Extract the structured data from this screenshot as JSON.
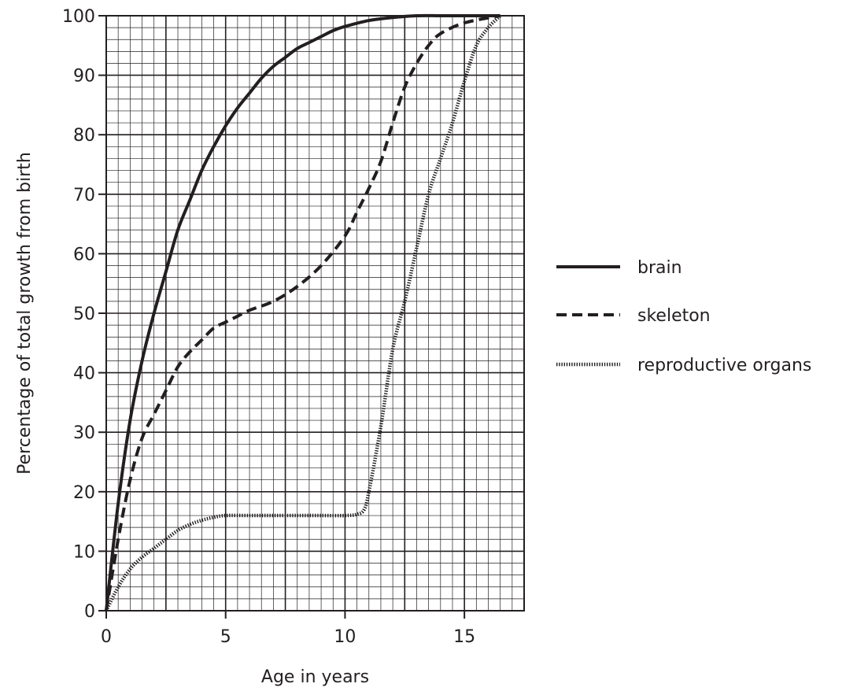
{
  "chart_data": {
    "type": "line",
    "title": "",
    "xlabel": "Age in years",
    "ylabel": "Percentage of total growth from birth",
    "xlim": [
      0,
      17.5
    ],
    "ylim": [
      0,
      100
    ],
    "x_ticks": [
      0,
      5,
      10,
      15
    ],
    "y_ticks": [
      0,
      10,
      20,
      30,
      40,
      50,
      60,
      70,
      80,
      90,
      100
    ],
    "grid": true,
    "legend_position": "right",
    "series": [
      {
        "name": "brain",
        "style": "solid",
        "points": [
          [
            0,
            0
          ],
          [
            0.5,
            18
          ],
          [
            1,
            32
          ],
          [
            1.5,
            42
          ],
          [
            2,
            50
          ],
          [
            2.5,
            57
          ],
          [
            3,
            64
          ],
          [
            3.5,
            69
          ],
          [
            4,
            74
          ],
          [
            4.5,
            78
          ],
          [
            5,
            81.5
          ],
          [
            5.5,
            84.5
          ],
          [
            6,
            87
          ],
          [
            6.5,
            89.5
          ],
          [
            7,
            91.5
          ],
          [
            7.5,
            93
          ],
          [
            8,
            94.5
          ],
          [
            8.5,
            95.5
          ],
          [
            9,
            96.5
          ],
          [
            9.5,
            97.5
          ],
          [
            10,
            98.2
          ],
          [
            11,
            99.2
          ],
          [
            12,
            99.7
          ],
          [
            13,
            100
          ],
          [
            14,
            100
          ],
          [
            15,
            100
          ],
          [
            16.5,
            100
          ]
        ]
      },
      {
        "name": "skeleton",
        "style": "dashed",
        "points": [
          [
            0,
            0
          ],
          [
            0.5,
            12
          ],
          [
            1,
            22
          ],
          [
            1.5,
            29
          ],
          [
            2,
            33
          ],
          [
            2.5,
            37
          ],
          [
            3,
            41
          ],
          [
            3.5,
            43.5
          ],
          [
            4,
            45.5
          ],
          [
            4.5,
            47.5
          ],
          [
            5,
            48.5
          ],
          [
            5.5,
            49.5
          ],
          [
            6,
            50.5
          ],
          [
            7,
            52
          ],
          [
            8,
            54.5
          ],
          [
            9,
            58
          ],
          [
            10,
            63
          ],
          [
            10.5,
            67
          ],
          [
            11,
            71
          ],
          [
            11.5,
            75.5
          ],
          [
            12,
            82
          ],
          [
            12.5,
            88
          ],
          [
            13,
            92
          ],
          [
            13.5,
            95
          ],
          [
            14,
            97
          ],
          [
            15,
            98.8
          ],
          [
            16.5,
            100
          ]
        ]
      },
      {
        "name": "reproductive organs",
        "style": "dotted",
        "points": [
          [
            0,
            0
          ],
          [
            0.5,
            4
          ],
          [
            1,
            7
          ],
          [
            1.5,
            9
          ],
          [
            2,
            10.5
          ],
          [
            2.5,
            12
          ],
          [
            3,
            13.5
          ],
          [
            3.5,
            14.5
          ],
          [
            4,
            15.2
          ],
          [
            4.5,
            15.7
          ],
          [
            5,
            16
          ],
          [
            6,
            16
          ],
          [
            7,
            16
          ],
          [
            8,
            16
          ],
          [
            9,
            16
          ],
          [
            10,
            16
          ],
          [
            10.5,
            16.2
          ],
          [
            10.8,
            17
          ],
          [
            11,
            20
          ],
          [
            11.5,
            31
          ],
          [
            12,
            44
          ],
          [
            12.5,
            52
          ],
          [
            13,
            61
          ],
          [
            13.5,
            70
          ],
          [
            14,
            76
          ],
          [
            14.5,
            82
          ],
          [
            15,
            89
          ],
          [
            15.5,
            95
          ],
          [
            16,
            98
          ],
          [
            16.5,
            100
          ]
        ]
      }
    ]
  },
  "colors": {
    "ink": "#231f20",
    "background": "#ffffff"
  }
}
